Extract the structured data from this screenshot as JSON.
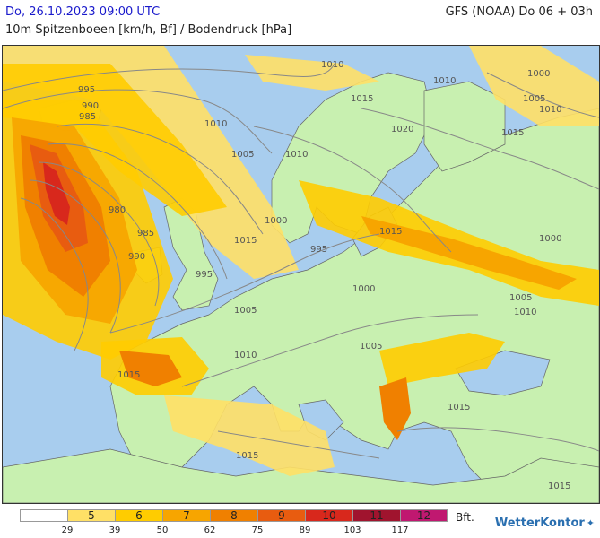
{
  "header": {
    "date": "Do, 26.10.2023 09:00 UTC",
    "model": "GFS (NOAA) Do 06 + 03h",
    "subtitle": "10m Spitzenboeen [km/h, Bf] / Bodendruck [hPa]"
  },
  "isobars": [
    "1010",
    "1010",
    "1000",
    "995",
    "990",
    "985",
    "1010",
    "1005",
    "1010",
    "1005",
    "1000",
    "995",
    "990",
    "985",
    "980",
    "995",
    "1000",
    "1005",
    "1015",
    "1020",
    "1015",
    "1015",
    "1010",
    "1010",
    "1000",
    "1005",
    "1005",
    "1010",
    "1015",
    "1015",
    "1015",
    "1015",
    "1015"
  ],
  "legend": {
    "colors": [
      "#ffffff",
      "#ffe066",
      "#ffcc00",
      "#f7a500",
      "#f08000",
      "#e85c10",
      "#d8281c",
      "#a0142e",
      "#c01870"
    ],
    "labels": [
      "",
      "5",
      "6",
      "7",
      "8",
      "9",
      "10",
      "11",
      "12"
    ],
    "ticks": [
      "29",
      "39",
      "50",
      "62",
      "75",
      "89",
      "103",
      "117"
    ],
    "unit": "Bft."
  },
  "brand": {
    "name": "WetterKontor",
    "icon": "wetterkontor-logo-icon"
  }
}
